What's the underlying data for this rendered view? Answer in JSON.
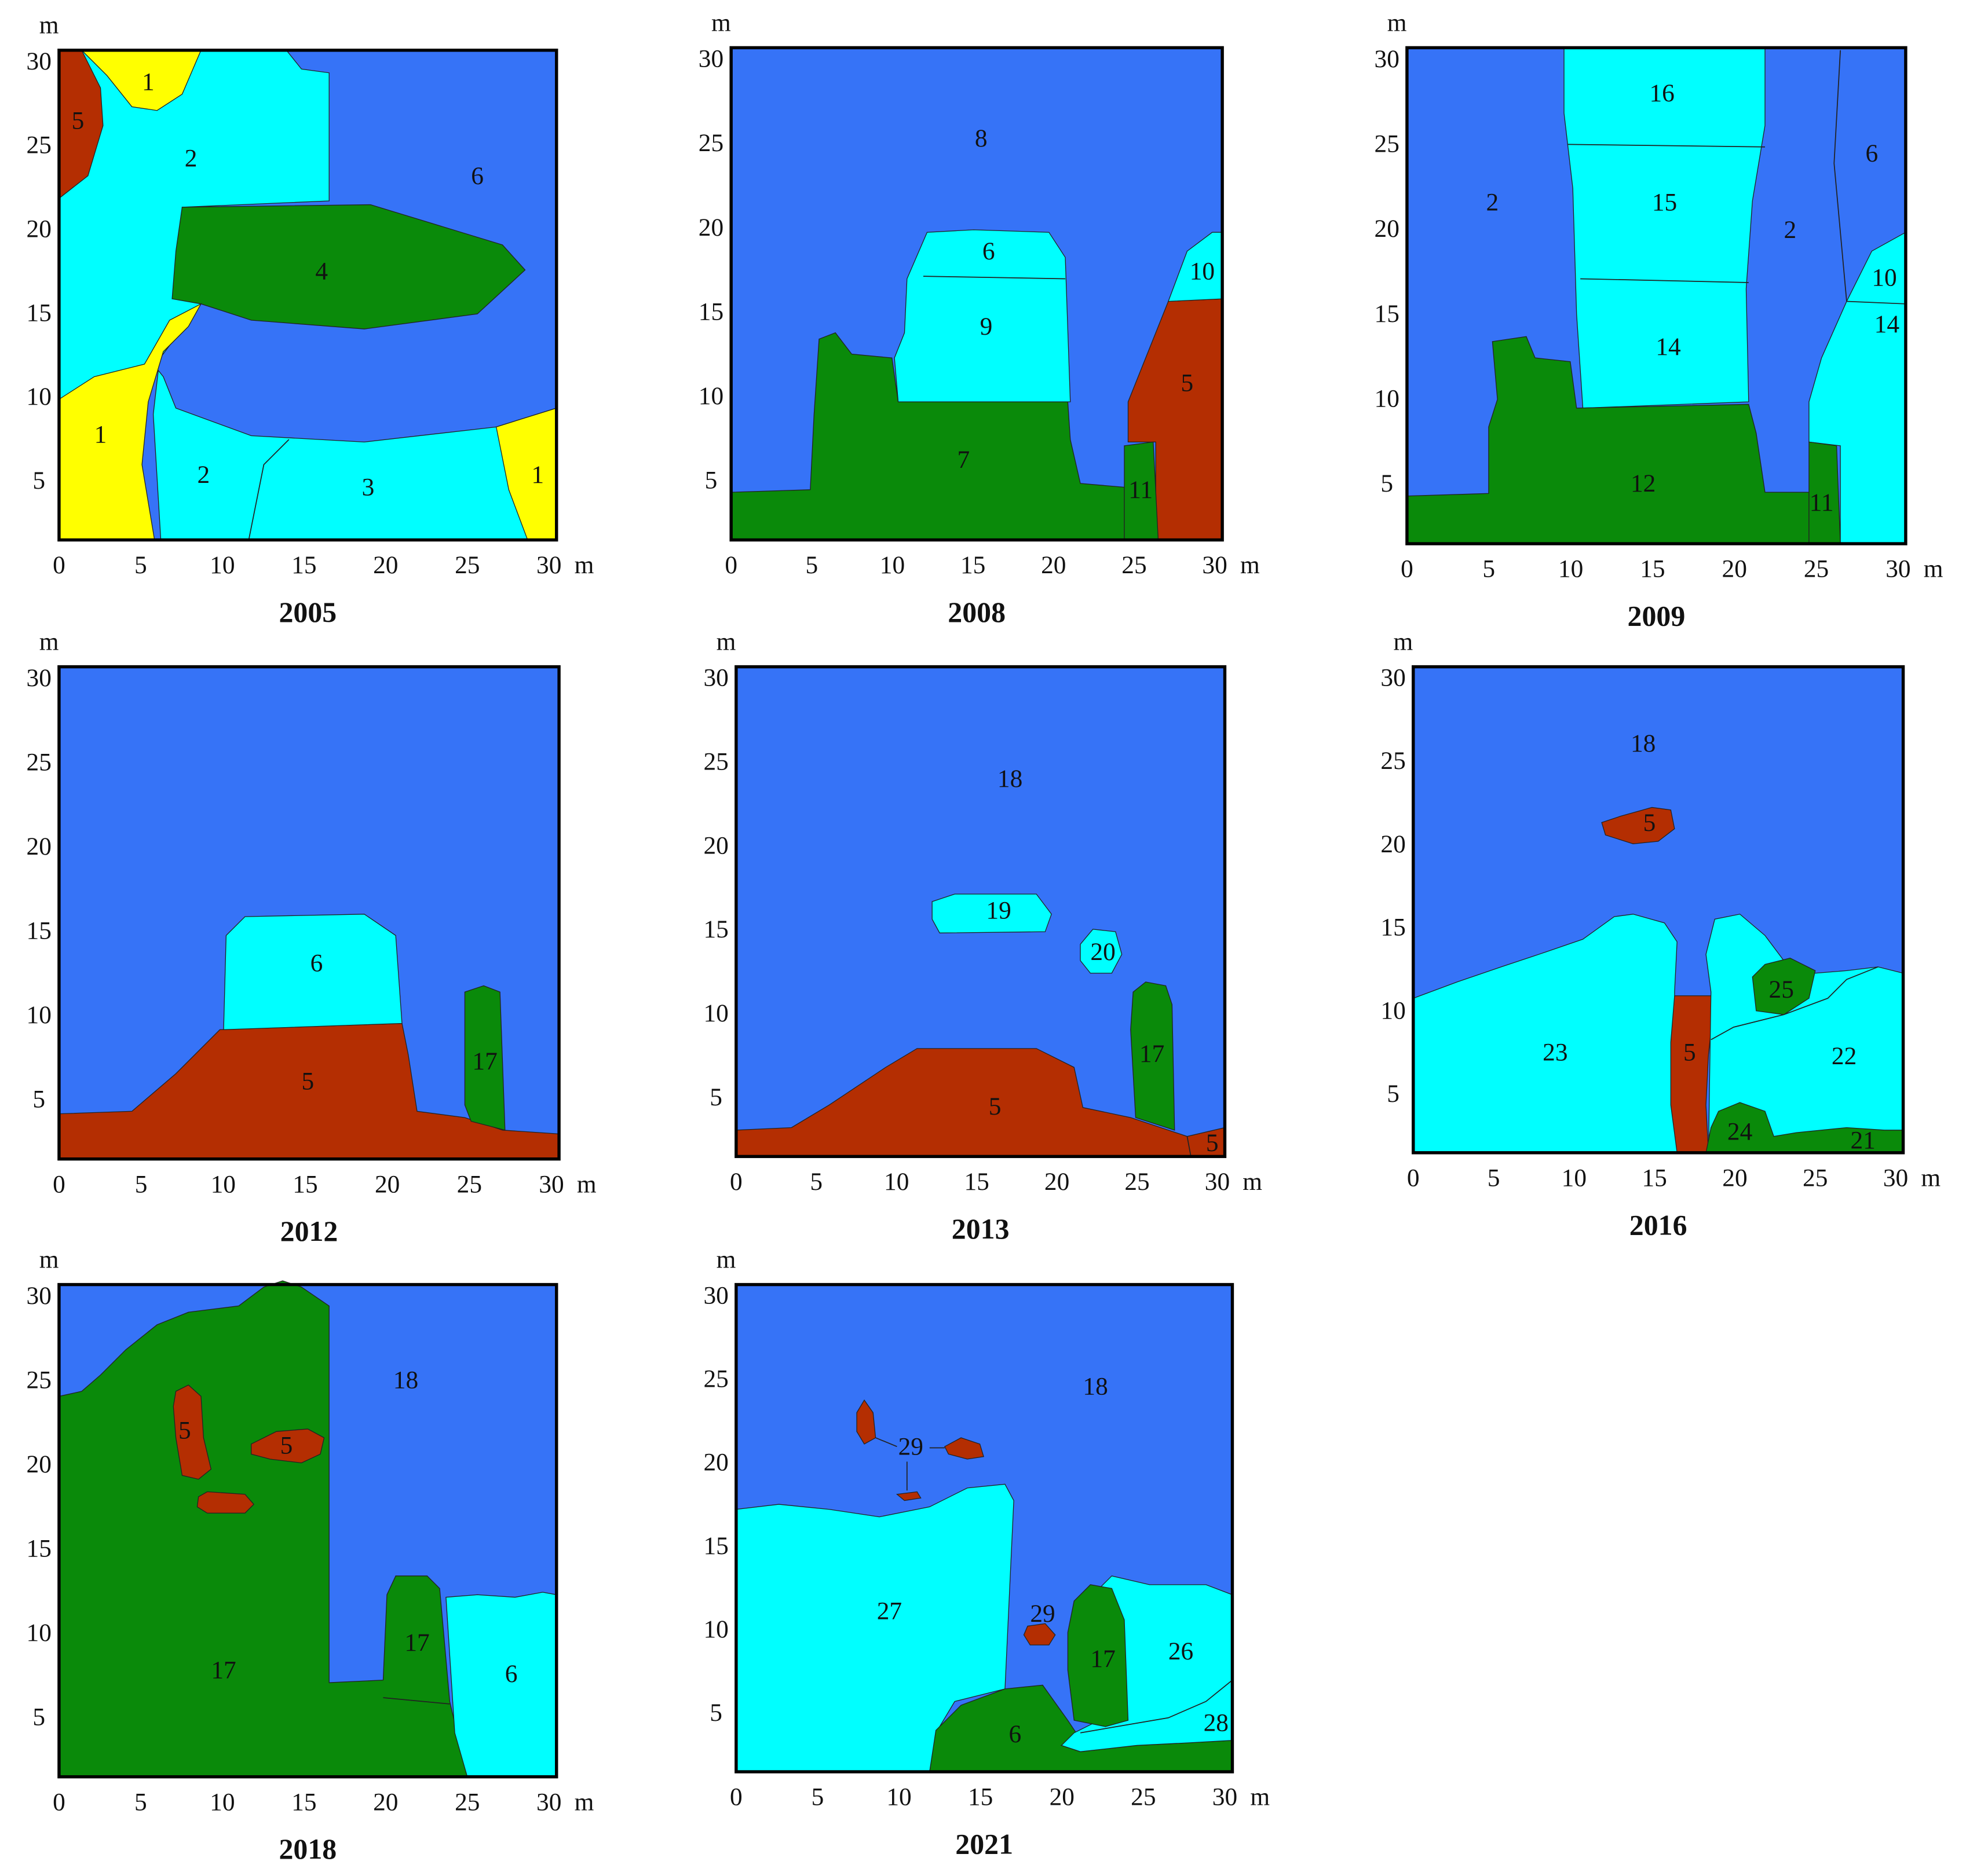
{
  "unit": "m",
  "ticks": [
    0,
    5,
    10,
    15,
    20,
    25,
    30
  ],
  "panels": [
    {
      "year": "2005",
      "regions": [
        "1",
        "5",
        "2",
        "6",
        "4",
        "1",
        "2",
        "3",
        "1"
      ]
    },
    {
      "year": "2008",
      "regions": [
        "8",
        "6",
        "10",
        "9",
        "5",
        "7",
        "11"
      ]
    },
    {
      "year": "2009",
      "regions": [
        "16",
        "2",
        "15",
        "6",
        "2",
        "10",
        "14",
        "14",
        "12",
        "11"
      ]
    },
    {
      "year": "2012",
      "regions": [
        "6",
        "5",
        "17"
      ]
    },
    {
      "year": "2013",
      "regions": [
        "18",
        "19",
        "20",
        "17",
        "5",
        "5"
      ]
    },
    {
      "year": "2016",
      "regions": [
        "18",
        "5",
        "25",
        "23",
        "5",
        "22",
        "24",
        "21"
      ]
    },
    {
      "year": "2018",
      "regions": [
        "18",
        "5",
        "5",
        "17",
        "17",
        "6"
      ]
    },
    {
      "year": "2021",
      "regions": [
        "18",
        "29",
        "27",
        "29",
        "17",
        "26",
        "28",
        "6"
      ]
    }
  ]
}
